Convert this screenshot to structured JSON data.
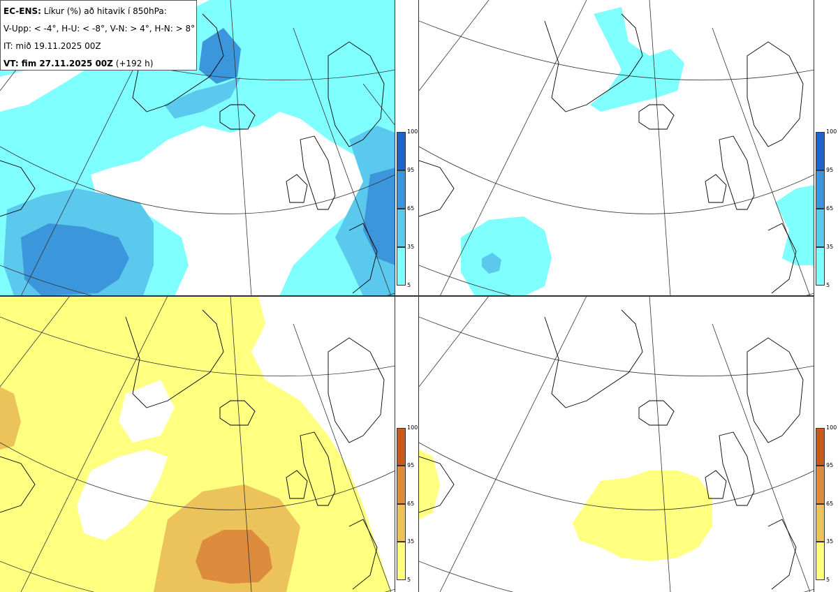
{
  "legend": {
    "line1_bold": "EC-ENS:",
    "line1_rest": " Líkur (%) að hitavik í 850hPa:",
    "line2": "V-Upp: < -4°, H-U: < -8°, V-N: > 4°, H-N: > 8°",
    "line3": "IT: mið 19.11.2025 00Z",
    "line4_bold": "VT: fim 27.11.2025 00Z",
    "line4_rest": " (+192 h)"
  },
  "colorbar_ticks": [
    "100",
    "95",
    "65",
    "35",
    "5"
  ],
  "colors": {
    "blue": [
      "#80ffff",
      "#5bc8ee",
      "#3c96dc",
      "#1f64c8"
    ],
    "yellow": [
      "#ffff80",
      "#ebc35a",
      "#dc8c3c",
      "#c85a1e"
    ],
    "coast": "#000000"
  },
  "panels": [
    {
      "id": "top-left",
      "scale": "blue"
    },
    {
      "id": "top-right",
      "scale": "blue"
    },
    {
      "id": "bottom-left",
      "scale": "yellow"
    },
    {
      "id": "bottom-right",
      "scale": "yellow"
    }
  ]
}
